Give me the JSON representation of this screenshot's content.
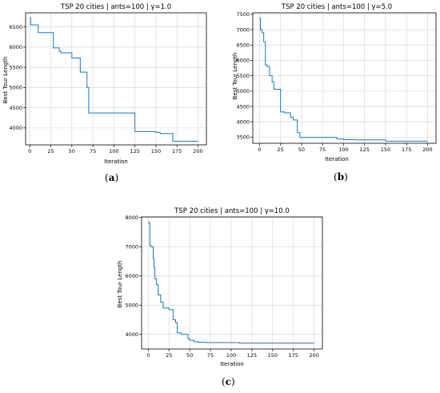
{
  "chart_data": [
    {
      "id": "a",
      "type": "line",
      "title": "TSP 20 cities | ants=100 | γ=1.0",
      "xlabel": "Iteration",
      "ylabel": "Best Tour Length",
      "xlim": [
        -5,
        210
      ],
      "ylim": [
        3580,
        6850
      ],
      "xticks": [
        0,
        25,
        50,
        75,
        100,
        125,
        150,
        175,
        200
      ],
      "yticks": [
        4000,
        4500,
        5000,
        5500,
        6000,
        6500
      ],
      "grid": true,
      "color": "#1f77b4",
      "caption_letter": "a",
      "x": [
        0,
        1,
        1,
        2,
        2,
        10,
        10,
        28,
        28,
        35,
        35,
        37,
        37,
        50,
        50,
        60,
        60,
        68,
        68,
        70,
        70,
        125,
        125,
        150,
        150,
        155,
        155,
        170,
        170,
        200
      ],
      "y": [
        6720,
        6720,
        6550,
        6550,
        6550,
        6550,
        6360,
        6360,
        5980,
        5980,
        5900,
        5900,
        5860,
        5860,
        5730,
        5730,
        5380,
        5380,
        5000,
        5000,
        4370,
        4370,
        3910,
        3910,
        3890,
        3890,
        3860,
        3860,
        3670,
        3670
      ]
    },
    {
      "id": "b",
      "type": "line",
      "title": "TSP 20 cities | ants=100 | γ=5.0",
      "xlabel": "Iteration",
      "ylabel": "Best Tour Length",
      "xlim": [
        -8,
        210
      ],
      "ylim": [
        3300,
        7550
      ],
      "xticks": [
        0,
        25,
        50,
        75,
        100,
        125,
        150,
        175,
        200
      ],
      "yticks": [
        3500,
        4000,
        4500,
        5000,
        5500,
        6000,
        6500,
        7000,
        7500
      ],
      "grid": true,
      "color": "#1f77b4",
      "caption_letter": "b",
      "x": [
        0,
        1,
        1,
        3,
        3,
        5,
        5,
        7,
        7,
        9,
        9,
        12,
        12,
        15,
        15,
        17,
        17,
        18,
        18,
        25,
        25,
        30,
        30,
        37,
        37,
        40,
        40,
        45,
        45,
        48,
        48,
        50,
        50,
        92,
        92,
        100,
        100,
        115,
        115,
        150,
        150,
        200
      ],
      "y": [
        7380,
        7380,
        7000,
        7000,
        6900,
        6900,
        6600,
        6600,
        5850,
        5850,
        5800,
        5800,
        5500,
        5500,
        5300,
        5300,
        5070,
        5070,
        5060,
        5060,
        4320,
        4320,
        4290,
        4290,
        4150,
        4150,
        4060,
        4060,
        3650,
        3650,
        3490,
        3490,
        3490,
        3490,
        3440,
        3440,
        3420,
        3420,
        3410,
        3410,
        3370,
        3370
      ]
    },
    {
      "id": "c",
      "type": "line",
      "title": "TSP 20 cities | ants=100 | γ=10.0",
      "xlabel": "Iteration",
      "ylabel": "Best Tour Length",
      "xlim": [
        -8,
        210
      ],
      "ylim": [
        3500,
        8020
      ],
      "xticks": [
        0,
        25,
        50,
        75,
        100,
        125,
        150,
        175,
        200
      ],
      "yticks": [
        4000,
        5000,
        6000,
        7000,
        8000
      ],
      "grid": true,
      "color": "#1f77b4",
      "caption_letter": "c",
      "x": [
        0,
        1,
        1,
        2,
        2,
        3,
        3,
        6,
        6,
        7,
        7,
        8,
        8,
        10,
        10,
        12,
        12,
        15,
        15,
        18,
        18,
        25,
        25,
        30,
        30,
        33,
        33,
        35,
        35,
        40,
        40,
        48,
        48,
        50,
        50,
        55,
        55,
        60,
        60,
        70,
        70,
        110,
        110,
        200
      ],
      "y": [
        7850,
        7850,
        7800,
        7800,
        7050,
        7050,
        7000,
        7000,
        6600,
        6600,
        6300,
        6300,
        5900,
        5900,
        5700,
        5700,
        5350,
        5350,
        5100,
        5100,
        4900,
        4900,
        4850,
        4850,
        4500,
        4500,
        4400,
        4400,
        4050,
        4050,
        4000,
        4000,
        3850,
        3850,
        3800,
        3800,
        3750,
        3750,
        3730,
        3730,
        3720,
        3720,
        3700,
        3700
      ]
    }
  ]
}
